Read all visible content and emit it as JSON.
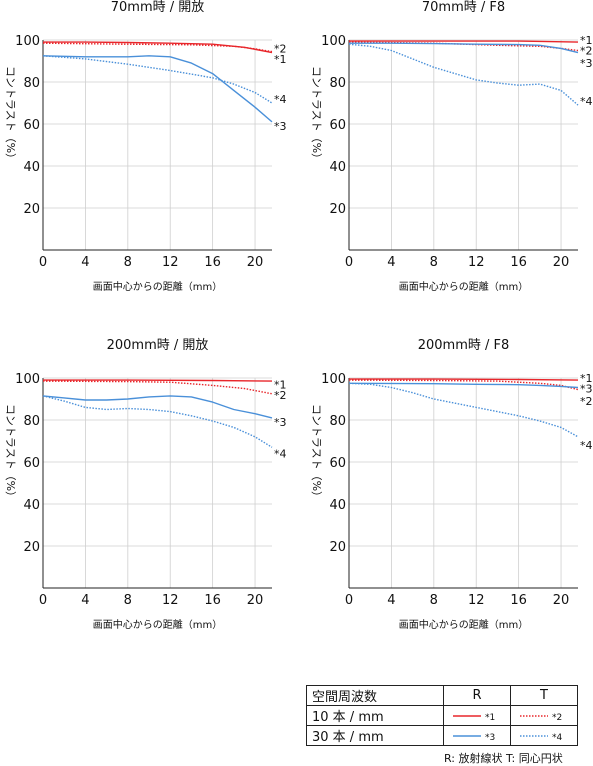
{
  "colors": {
    "R": "#e8262b",
    "T": "#4a90d9"
  },
  "chart_data": [
    {
      "type": "line",
      "title": "70mm時 / 開放",
      "xlabel": "画面中心からの距離（mm）",
      "ylabel": "コントラスト（%）",
      "xlim": [
        0,
        21.6
      ],
      "ylim": [
        0,
        100
      ],
      "xticks": [
        0,
        4,
        8,
        12,
        16,
        20
      ],
      "yticks": [
        20,
        40,
        60,
        80,
        100
      ],
      "series": [
        {
          "name": "*1",
          "style": "R-solid",
          "points": [
            [
              0,
              99
            ],
            [
              4,
              99
            ],
            [
              8,
              98.8
            ],
            [
              12,
              98.5
            ],
            [
              16,
              98
            ],
            [
              19,
              96.5
            ],
            [
              21.6,
              94
            ]
          ]
        },
        {
          "name": "*2",
          "style": "R-dot",
          "points": [
            [
              0,
              98.5
            ],
            [
              8,
              98
            ],
            [
              14,
              97.7
            ],
            [
              18,
              97
            ],
            [
              20,
              95.8
            ],
            [
              21.6,
              94.5
            ]
          ]
        },
        {
          "name": "*3",
          "style": "T-solid",
          "points": [
            [
              0,
              92.5
            ],
            [
              4,
              92
            ],
            [
              8,
              92
            ],
            [
              10,
              92.5
            ],
            [
              12,
              92
            ],
            [
              14,
              89
            ],
            [
              16,
              84
            ],
            [
              18,
              76
            ],
            [
              20,
              68
            ],
            [
              21.6,
              61
            ]
          ]
        },
        {
          "name": "*4",
          "style": "T-dot",
          "points": [
            [
              0,
              92.5
            ],
            [
              4,
              91
            ],
            [
              8,
              88.5
            ],
            [
              12,
              85.5
            ],
            [
              16,
              82
            ],
            [
              18,
              79
            ],
            [
              20,
              75
            ],
            [
              21.6,
              70
            ]
          ]
        }
      ],
      "markers": [
        {
          "label": "*2",
          "y": 96
        },
        {
          "label": "*1",
          "y": 91
        },
        {
          "label": "*4",
          "y": 72
        },
        {
          "label": "*3",
          "y": 59
        }
      ]
    },
    {
      "type": "line",
      "title": "70mm時 / F8",
      "xlabel": "画面中心からの距離（mm）",
      "ylabel": "コントラスト（%）",
      "xlim": [
        0,
        21.6
      ],
      "ylim": [
        0,
        100
      ],
      "xticks": [
        0,
        4,
        8,
        12,
        16,
        20
      ],
      "yticks": [
        20,
        40,
        60,
        80,
        100
      ],
      "series": [
        {
          "name": "*1",
          "style": "R-solid",
          "points": [
            [
              0,
              99.5
            ],
            [
              8,
              99.5
            ],
            [
              16,
              99.5
            ],
            [
              21.6,
              99
            ]
          ]
        },
        {
          "name": "*2",
          "style": "R-dot",
          "points": [
            [
              0,
              99
            ],
            [
              8,
              98.5
            ],
            [
              14,
              97.5
            ],
            [
              18,
              97
            ],
            [
              20,
              96
            ],
            [
              21.6,
              95
            ]
          ]
        },
        {
          "name": "*3",
          "style": "T-solid",
          "points": [
            [
              0,
              98.5
            ],
            [
              4,
              98.5
            ],
            [
              8,
              98.3
            ],
            [
              12,
              98
            ],
            [
              16,
              97.8
            ],
            [
              18,
              97.5
            ],
            [
              20,
              96
            ],
            [
              21.6,
              94
            ]
          ]
        },
        {
          "name": "*4",
          "style": "T-dot",
          "points": [
            [
              0,
              98
            ],
            [
              2,
              97
            ],
            [
              4,
              95
            ],
            [
              6,
              91
            ],
            [
              8,
              87
            ],
            [
              10,
              84
            ],
            [
              12,
              81
            ],
            [
              14,
              79.5
            ],
            [
              16,
              78.5
            ],
            [
              18,
              79
            ],
            [
              20,
              76
            ],
            [
              21.6,
              69
            ]
          ]
        }
      ],
      "markers": [
        {
          "label": "*1",
          "y": 100
        },
        {
          "label": "*2",
          "y": 95
        },
        {
          "label": "*3",
          "y": 89
        },
        {
          "label": "*4",
          "y": 71
        }
      ]
    },
    {
      "type": "line",
      "title": "200mm時 / 開放",
      "xlabel": "画面中心からの距離（mm）",
      "ylabel": "コントラスト（%）",
      "xlim": [
        0,
        21.6
      ],
      "ylim": [
        0,
        100
      ],
      "xticks": [
        0,
        4,
        8,
        12,
        16,
        20
      ],
      "yticks": [
        20,
        40,
        60,
        80,
        100
      ],
      "series": [
        {
          "name": "*1",
          "style": "R-solid",
          "points": [
            [
              0,
              99
            ],
            [
              8,
              99
            ],
            [
              16,
              98.8
            ],
            [
              21.6,
              98.5
            ]
          ]
        },
        {
          "name": "*2",
          "style": "R-dot",
          "points": [
            [
              0,
              98.5
            ],
            [
              8,
              98.3
            ],
            [
              12,
              98
            ],
            [
              16,
              96.5
            ],
            [
              19,
              95
            ],
            [
              21.6,
              92.5
            ]
          ]
        },
        {
          "name": "*3",
          "style": "T-solid",
          "points": [
            [
              0,
              91.5
            ],
            [
              2,
              90.5
            ],
            [
              4,
              89.5
            ],
            [
              6,
              89.5
            ],
            [
              8,
              90
            ],
            [
              10,
              91
            ],
            [
              12,
              91.5
            ],
            [
              14,
              91
            ],
            [
              16,
              88.5
            ],
            [
              18,
              85
            ],
            [
              20,
              83
            ],
            [
              21.6,
              81
            ]
          ]
        },
        {
          "name": "*4",
          "style": "T-dot",
          "points": [
            [
              0,
              91.5
            ],
            [
              2,
              89
            ],
            [
              4,
              86
            ],
            [
              6,
              85
            ],
            [
              8,
              85.5
            ],
            [
              10,
              85
            ],
            [
              12,
              84
            ],
            [
              14,
              82
            ],
            [
              16,
              79.5
            ],
            [
              18,
              76.5
            ],
            [
              20,
              72
            ],
            [
              21.6,
              67
            ]
          ]
        }
      ],
      "markers": [
        {
          "label": "*1",
          "y": 97
        },
        {
          "label": "*2",
          "y": 92
        },
        {
          "label": "*3",
          "y": 79
        },
        {
          "label": "*4",
          "y": 64
        }
      ]
    },
    {
      "type": "line",
      "title": "200mm時 / F8",
      "xlabel": "画面中心からの距離（mm）",
      "ylabel": "コントラスト（%）",
      "xlim": [
        0,
        21.6
      ],
      "ylim": [
        0,
        100
      ],
      "xticks": [
        0,
        4,
        8,
        12,
        16,
        20
      ],
      "yticks": [
        20,
        40,
        60,
        80,
        100
      ],
      "series": [
        {
          "name": "*1",
          "style": "R-solid",
          "points": [
            [
              0,
              99.5
            ],
            [
              8,
              99.5
            ],
            [
              16,
              99.3
            ],
            [
              21.6,
              99
            ]
          ]
        },
        {
          "name": "*2",
          "style": "R-dot",
          "points": [
            [
              0,
              99
            ],
            [
              8,
              98.8
            ],
            [
              14,
              98.5
            ],
            [
              18,
              97.5
            ],
            [
              20,
              96.5
            ],
            [
              21.6,
              94.5
            ]
          ]
        },
        {
          "name": "*3",
          "style": "T-solid",
          "points": [
            [
              0,
              97.5
            ],
            [
              8,
              97.3
            ],
            [
              12,
              97
            ],
            [
              16,
              96.8
            ],
            [
              18,
              96.5
            ],
            [
              20,
              96
            ],
            [
              21.6,
              95.5
            ]
          ]
        },
        {
          "name": "*4",
          "style": "T-dot",
          "points": [
            [
              0,
              97.5
            ],
            [
              2,
              97
            ],
            [
              4,
              95.5
            ],
            [
              6,
              93
            ],
            [
              8,
              90
            ],
            [
              10,
              88
            ],
            [
              12,
              86
            ],
            [
              14,
              84
            ],
            [
              16,
              82
            ],
            [
              18,
              79.5
            ],
            [
              20,
              76.5
            ],
            [
              21.6,
              72
            ]
          ]
        }
      ],
      "markers": [
        {
          "label": "*1",
          "y": 100
        },
        {
          "label": "*3",
          "y": 95
        },
        {
          "label": "*2",
          "y": 89
        },
        {
          "label": "*4",
          "y": 68
        }
      ]
    }
  ],
  "legend": {
    "header_label": "空間周波数",
    "col_r": "R",
    "col_t": "T",
    "rows": [
      {
        "label": "10 本 / mm",
        "r_mark": "*1",
        "t_mark": "*2"
      },
      {
        "label": "30 本 / mm",
        "r_mark": "*3",
        "t_mark": "*4"
      }
    ],
    "footer": "R: 放射線状  T: 同心円状"
  }
}
